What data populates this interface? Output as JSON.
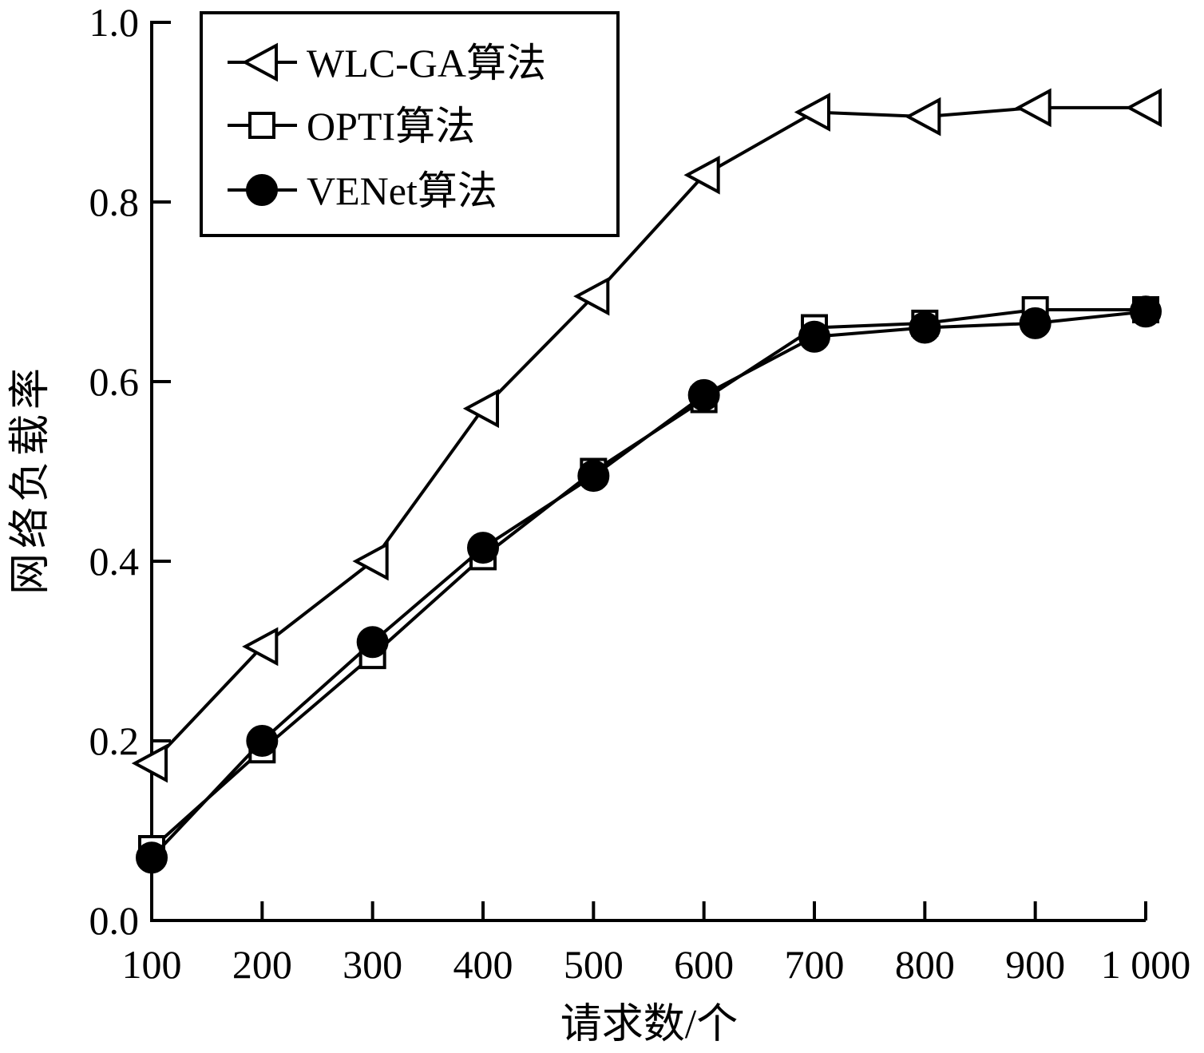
{
  "chart_data": {
    "type": "line",
    "title": "",
    "xlabel": "请求数/个",
    "ylabel": "网络负载率",
    "x": [
      100,
      200,
      300,
      400,
      500,
      600,
      700,
      800,
      900,
      1000
    ],
    "x_tick_labels": [
      "100",
      "200",
      "300",
      "400",
      "500",
      "600",
      "700",
      "800",
      "900",
      "1 000"
    ],
    "y_ticks": [
      0.0,
      0.2,
      0.4,
      0.6,
      0.8,
      1.0
    ],
    "y_tick_labels": [
      "0.0",
      "0.2",
      "0.4",
      "0.6",
      "0.8",
      "1.0"
    ],
    "xlim": [
      100,
      1000
    ],
    "ylim": [
      0.0,
      1.0
    ],
    "grid": false,
    "legend_position": "top-left",
    "series": [
      {
        "name": "WLC-GA算法",
        "marker": "triangle-left-open",
        "values": [
          0.175,
          0.305,
          0.4,
          0.57,
          0.695,
          0.83,
          0.9,
          0.895,
          0.905,
          0.905
        ]
      },
      {
        "name": "OPTI算法",
        "marker": "square-open",
        "values": [
          0.08,
          0.19,
          0.295,
          0.405,
          0.5,
          0.58,
          0.66,
          0.665,
          0.68,
          0.68
        ]
      },
      {
        "name": "VENet算法",
        "marker": "circle-filled",
        "values": [
          0.07,
          0.2,
          0.31,
          0.415,
          0.495,
          0.585,
          0.65,
          0.66,
          0.665,
          0.678
        ]
      }
    ],
    "colors": {
      "line": "#000000",
      "marker_fill_open": "#ffffff",
      "marker_fill_solid": "#000000"
    }
  }
}
